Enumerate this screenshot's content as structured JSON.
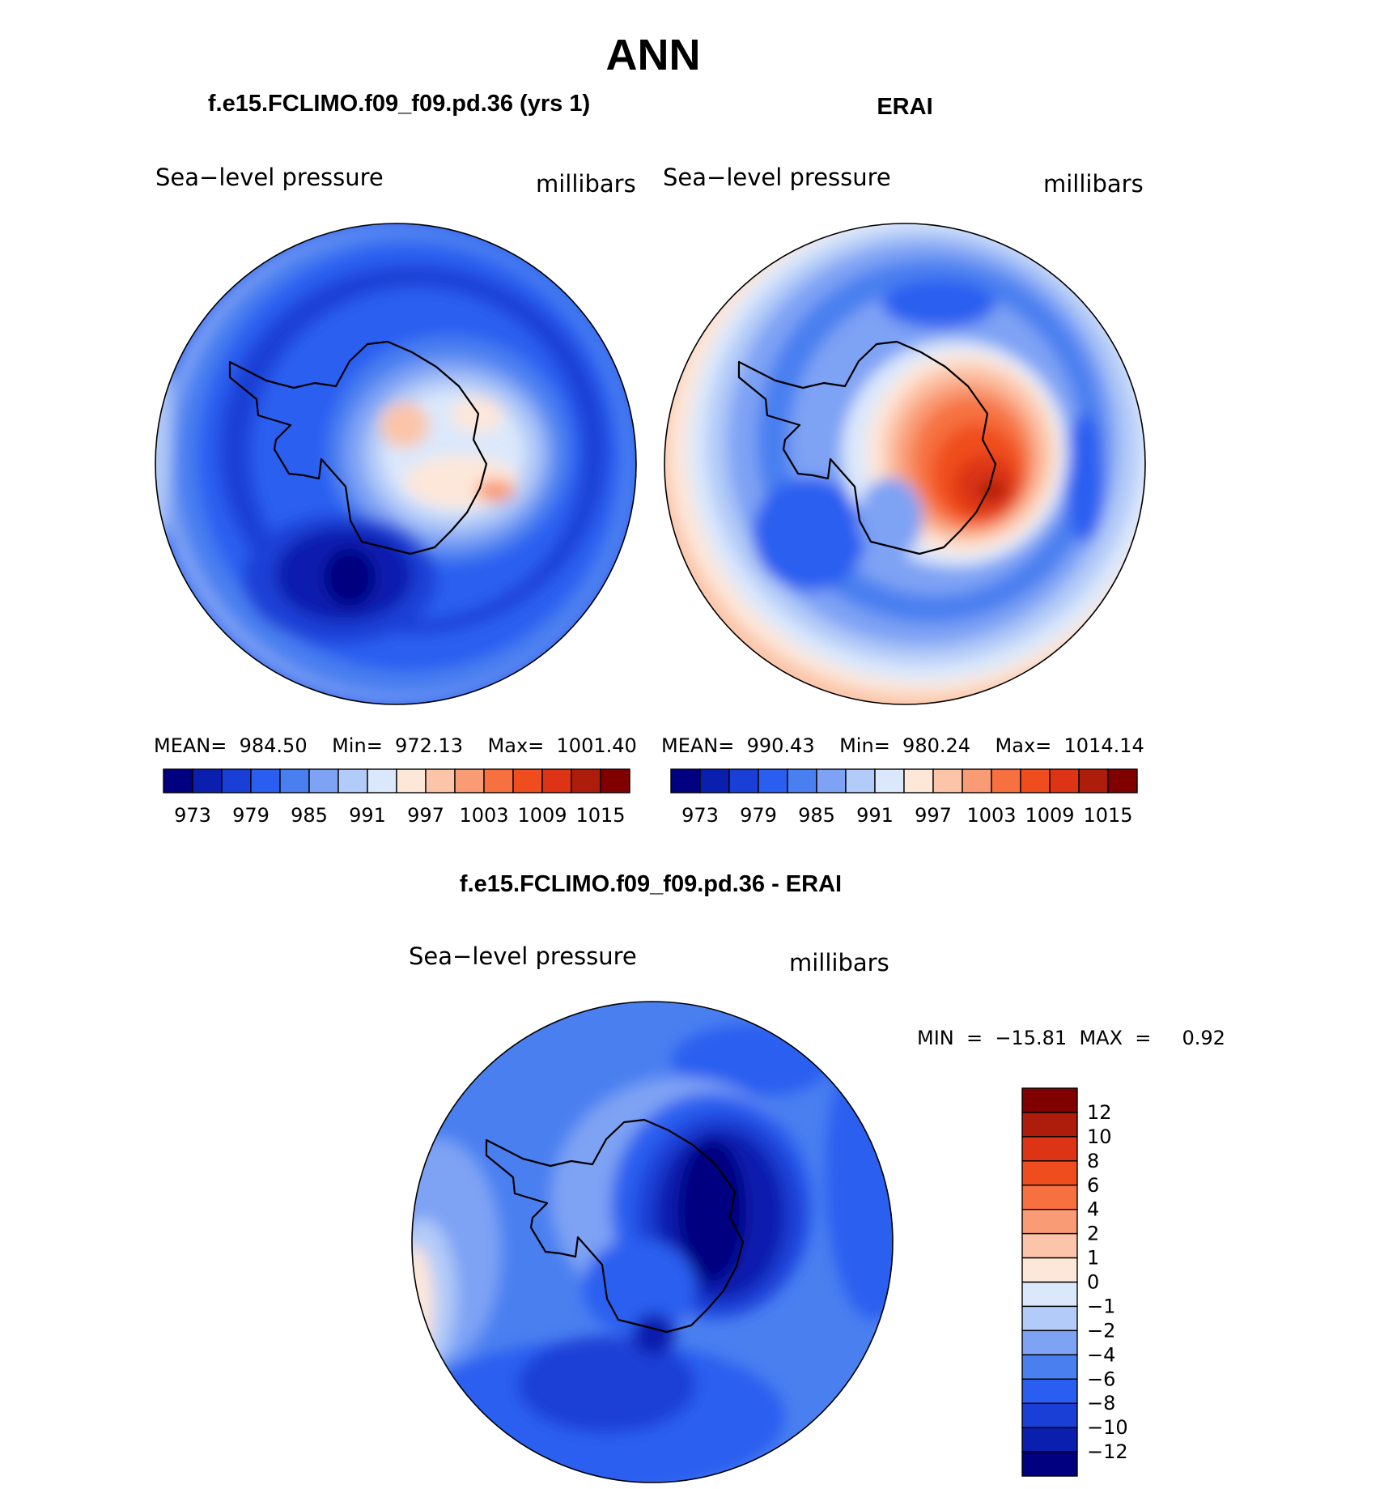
{
  "title": "ANN",
  "palette": {
    "abs": [
      "#000080",
      "#0a1fae",
      "#1a3fd6",
      "#2a5ef0",
      "#4a7ff0",
      "#7ea2f4",
      "#b3cbf8",
      "#dbe8fb",
      "#fde7d9",
      "#fcc4a8",
      "#f99b74",
      "#f6713f",
      "#f04d1f",
      "#dc3414",
      "#ae1d0b",
      "#800000"
    ],
    "diff": [
      "#800000",
      "#ae1d0b",
      "#dc3414",
      "#f04d1f",
      "#f6713f",
      "#f99b74",
      "#fcc4a8",
      "#fde7d9",
      "#dbe8fb",
      "#b3cbf8",
      "#7ea2f4",
      "#4a7ff0",
      "#2a5ef0",
      "#1a3fd6",
      "#0a1fae",
      "#000080"
    ]
  },
  "panels": [
    {
      "title": "f.e15.FCLIMO.f09_f09.pd.36 (yrs 1)",
      "variable": "Sea−level pressure",
      "units": "millibars",
      "stats": "MEAN=  984.50    Min=  972.13    Max=  1001.40",
      "colorbar_ticks": [
        "973",
        "979",
        "985",
        "991",
        "997",
        "1003",
        "1009",
        "1015"
      ]
    },
    {
      "title": "ERAI",
      "variable": "Sea−level pressure",
      "units": "millibars",
      "stats": "MEAN=  990.43    Min=  980.24    Max=  1014.14",
      "colorbar_ticks": [
        "973",
        "979",
        "985",
        "991",
        "997",
        "1003",
        "1009",
        "1015"
      ]
    },
    {
      "title": "f.e15.FCLIMO.f09_f09.pd.36 - ERAI",
      "variable": "Sea−level pressure",
      "units": "millibars",
      "minmax": "MIN  =  −15.81  MAX  =     0.92",
      "colorbar_ticks": [
        "12",
        "10",
        "8",
        "6",
        "4",
        "2",
        "1",
        "0",
        "−1",
        "−2",
        "−4",
        "−6",
        "−8",
        "−10",
        "−12"
      ]
    }
  ],
  "chart_data": [
    {
      "type": "heatmap",
      "projection": "south polar stereographic",
      "title": "f.e15.FCLIMO.f09_f09.pd.36 (yrs 1)",
      "variable": "Sea-level pressure",
      "units": "millibars",
      "mean": 984.5,
      "min": 972.13,
      "max": 1001.4,
      "contour_levels": [
        970,
        973,
        976,
        979,
        982,
        985,
        988,
        991,
        994,
        997,
        1000,
        1003,
        1006,
        1009,
        1012,
        1015
      ],
      "features": [
        {
          "region": "interior high",
          "x": 0.52,
          "y": 0.46,
          "value": 998
        },
        {
          "region": "east high",
          "x": 0.68,
          "y": 0.57,
          "value": 1000
        },
        {
          "region": "west low",
          "x": 0.4,
          "y": 0.74,
          "value": 972
        },
        {
          "region": "ring",
          "x": 0.5,
          "y": 0.15,
          "value": 979
        }
      ]
    },
    {
      "type": "heatmap",
      "projection": "south polar stereographic",
      "title": "ERAI",
      "variable": "Sea-level pressure",
      "units": "millibars",
      "mean": 990.43,
      "min": 980.24,
      "max": 1014.14,
      "contour_levels": [
        970,
        973,
        976,
        979,
        982,
        985,
        988,
        991,
        994,
        997,
        1000,
        1003,
        1006,
        1009,
        1012,
        1015
      ],
      "features": [
        {
          "region": "interior high",
          "x": 0.62,
          "y": 0.52,
          "value": 1012
        },
        {
          "region": "north interior",
          "x": 0.52,
          "y": 0.4,
          "value": 1006
        },
        {
          "region": "ring",
          "x": 0.5,
          "y": 0.17,
          "value": 982
        }
      ]
    },
    {
      "type": "heatmap",
      "projection": "south polar stereographic",
      "title": "f.e15.FCLIMO.f09_f09.pd.36 - ERAI",
      "variable": "Sea-level pressure",
      "units": "millibars",
      "min": -15.81,
      "max": 0.92,
      "contour_levels": [
        -12,
        -10,
        -8,
        -6,
        -4,
        -2,
        -1,
        0,
        1,
        2,
        4,
        6,
        8,
        10,
        12
      ],
      "features": [
        {
          "region": "interior minimum",
          "x": 0.6,
          "y": 0.47,
          "value": -15
        },
        {
          "region": "peninsula",
          "x": 0.49,
          "y": 0.62,
          "value": -7
        },
        {
          "region": "outer west",
          "x": 0.06,
          "y": 0.62,
          "value": 0.5
        }
      ]
    }
  ]
}
